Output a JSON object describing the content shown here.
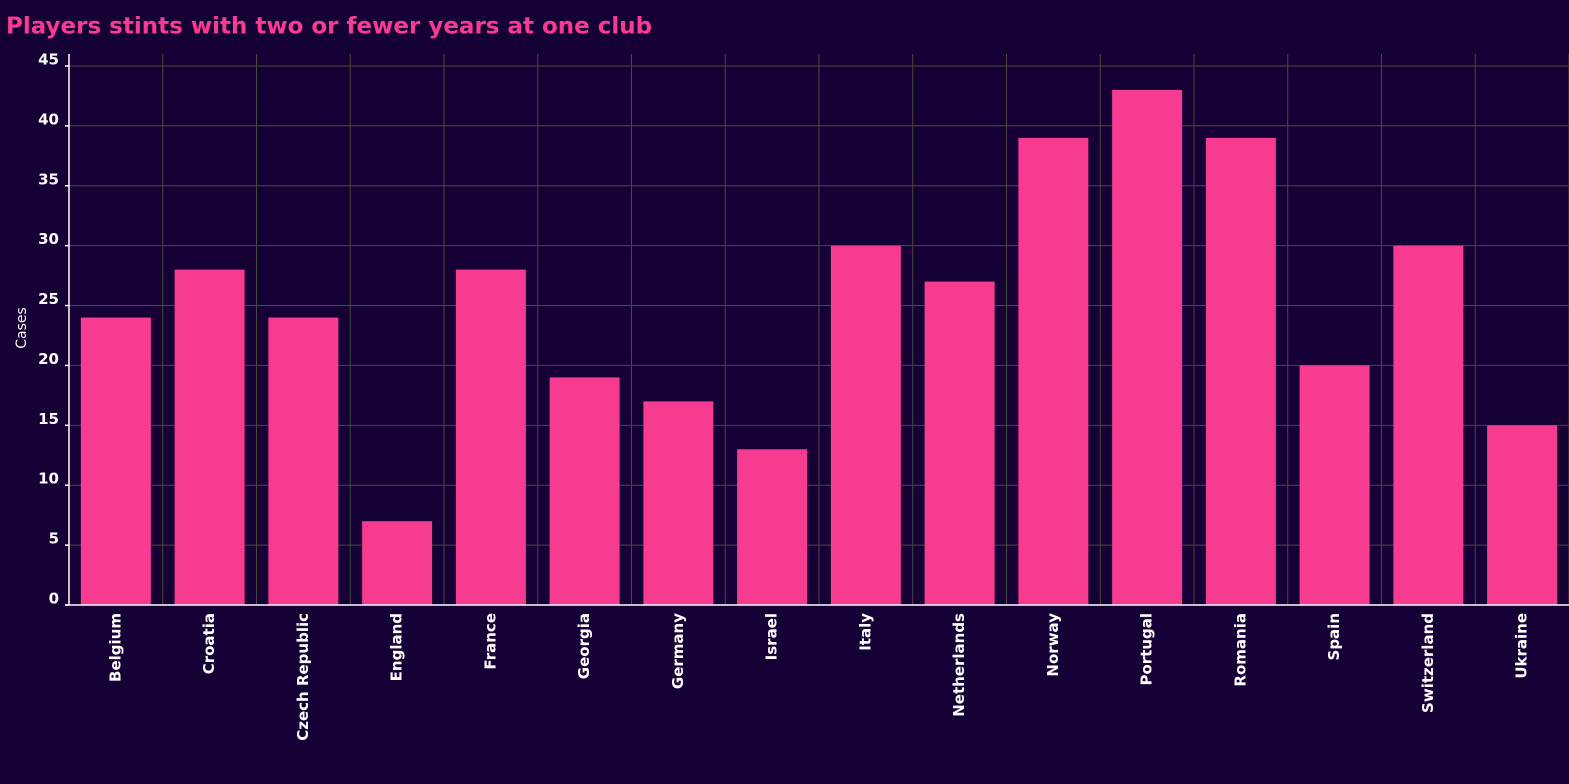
{
  "chart_data": {
    "type": "bar",
    "title": "Players stints with two or fewer years at one club",
    "y_label": "Cases",
    "categories": [
      "Belgium",
      "Croatia",
      "Czech Republic",
      "England",
      "France",
      "Georgia",
      "Germany",
      "Israel",
      "Italy",
      "Netherlands",
      "Norway",
      "Portugal",
      "Romania",
      "Spain",
      "Switzerland",
      "Ukraine"
    ],
    "values": [
      24,
      28,
      24,
      7,
      28,
      19,
      17,
      13,
      30,
      27,
      39,
      43,
      39,
      20,
      30,
      15
    ],
    "color": "#f73b91",
    "ylim": [
      0,
      46
    ],
    "yticks": [
      0,
      5,
      10,
      15,
      20,
      25,
      30,
      35,
      40,
      45
    ],
    "grid": true
  }
}
